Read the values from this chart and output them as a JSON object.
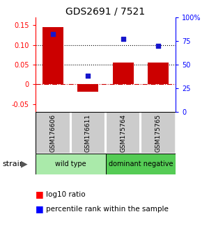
{
  "title": "GDS2691 / 7521",
  "samples": [
    "GSM176606",
    "GSM176611",
    "GSM175764",
    "GSM175765"
  ],
  "log10_ratio": [
    0.145,
    -0.018,
    0.055,
    0.055
  ],
  "percentile_rank": [
    0.82,
    0.38,
    0.77,
    0.7
  ],
  "bar_color": "#cc0000",
  "dot_color": "#1515cc",
  "ylim_left": [
    -0.07,
    0.17
  ],
  "ylim_right": [
    0.0,
    1.0
  ],
  "yticks_left": [
    -0.05,
    0.0,
    0.05,
    0.1,
    0.15
  ],
  "ytick_labels_left": [
    "-0.05",
    "0",
    "0.05",
    "0.10",
    "0.15"
  ],
  "yticks_right": [
    0.0,
    0.25,
    0.5,
    0.75,
    1.0
  ],
  "ytick_labels_right": [
    "0",
    "25",
    "50",
    "75",
    "100%"
  ],
  "hlines_dotted": [
    0.05,
    0.1
  ],
  "hline_dash": 0.0,
  "groups": [
    {
      "label": "wild type",
      "samples": [
        0,
        1
      ],
      "color": "#aaeaaa"
    },
    {
      "label": "dominant negative",
      "samples": [
        2,
        3
      ],
      "color": "#55cc55"
    }
  ],
  "strain_label": "strain",
  "legend_bar_label": "log10 ratio",
  "legend_dot_label": "percentile rank within the sample",
  "sample_box_color": "#cccccc",
  "bg_color": "#ffffff"
}
